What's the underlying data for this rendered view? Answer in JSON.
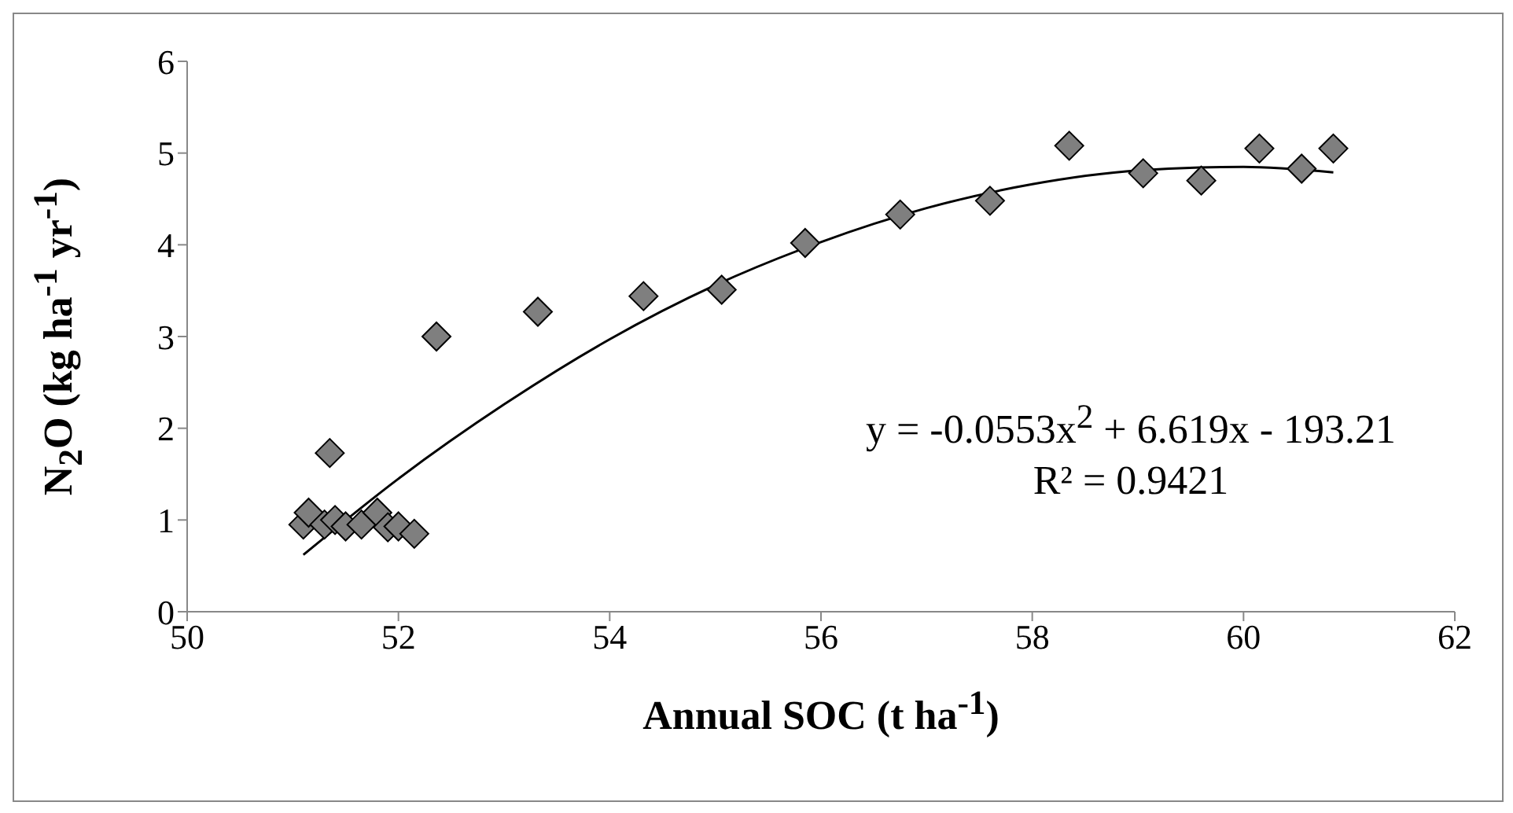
{
  "chart_data": {
    "type": "scatter",
    "xlabel": "Annual SOC (t ha$^{-1}$)",
    "ylabel": "N$_{2}$O (kg ha$^{-1}$ yr$^{-1}$)",
    "xlim": [
      50,
      62
    ],
    "xticks": [
      50,
      52,
      54,
      56,
      58,
      60,
      62
    ],
    "ylim": [
      0,
      6
    ],
    "yticks": [
      0,
      1,
      2,
      3,
      4,
      5,
      6
    ],
    "grid": false,
    "legend": false,
    "marker": "diamond",
    "annotations": [
      "y = -0.0553x$^{2}$ + 6.619x - 193.21",
      "R² = 0.9421"
    ],
    "series": [
      {
        "color": "#7f7f7f",
        "x": [
          51.1,
          51.15,
          51.3,
          51.35,
          51.4,
          51.5,
          51.65,
          51.8,
          51.9,
          52.0,
          52.15,
          52.36,
          53.32,
          54.32,
          55.06,
          55.85,
          56.75,
          57.6,
          58.35,
          59.05,
          59.6,
          60.15,
          60.55,
          60.85
        ],
        "values": [
          0.95,
          1.08,
          0.95,
          1.73,
          1.0,
          0.93,
          0.95,
          1.08,
          0.92,
          0.93,
          0.85,
          3.0,
          3.27,
          3.44,
          3.51,
          4.02,
          4.33,
          4.48,
          5.08,
          4.78,
          4.7,
          5.05,
          4.83,
          5.05
        ]
      },
      {
        "type": "line",
        "color": "#000000",
        "marker": "none",
        "line_style": "solid",
        "x": [
          51.1,
          52,
          53,
          54,
          55,
          56,
          57,
          58,
          59,
          60,
          60.85
        ],
        "values": [
          0.62,
          1.45,
          2.26,
          2.97,
          3.56,
          4.03,
          4.4,
          4.66,
          4.81,
          4.85,
          4.79
        ]
      }
    ]
  }
}
